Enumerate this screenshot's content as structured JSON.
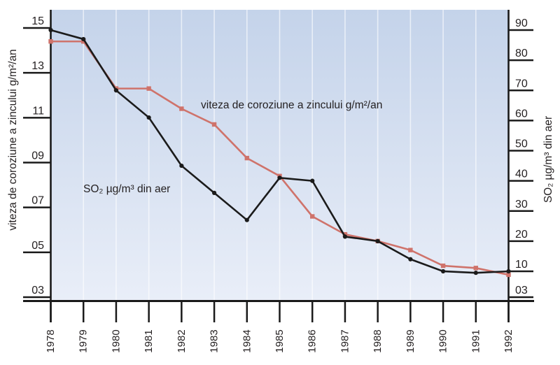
{
  "chart_data": {
    "type": "line",
    "x": [
      "1978",
      "1979",
      "1980",
      "1981",
      "1982",
      "1983",
      "1984",
      "1985",
      "1986",
      "1987",
      "1988",
      "1989",
      "1990",
      "1991",
      "1992"
    ],
    "left_axis": {
      "title": "viteza de coroziune a zincului g/m²/an",
      "ticks": [
        "15",
        "13",
        "11",
        "09",
        "07",
        "05",
        "03"
      ],
      "range": [
        3,
        15
      ]
    },
    "right_axis": {
      "title": "SO₂ µg/m³ din aer",
      "ticks": [
        "90",
        "80",
        "70",
        "60",
        "50",
        "40",
        "30",
        "20",
        "10",
        "03"
      ],
      "range": [
        10,
        90
      ]
    },
    "series": [
      {
        "name": "viteza de coroziune a zincului g/m²/an",
        "axis": "left",
        "color": "#cf736b",
        "marker": "square",
        "values": [
          14.4,
          14.4,
          12.3,
          12.3,
          11.4,
          10.7,
          9.2,
          8.4,
          6.6,
          5.8,
          5.5,
          5.1,
          4.4,
          4.3,
          4.0
        ]
      },
      {
        "name": "SO₂ µg/m³ din aer",
        "axis": "right",
        "color": "#1b1b1b",
        "marker": "circle",
        "values": [
          90,
          87,
          70,
          61,
          45,
          36,
          27,
          41,
          40,
          21.5,
          20,
          14,
          10,
          9.5,
          10
        ]
      }
    ],
    "grid": "vertical",
    "legend": "inline-labels",
    "background_gradient": [
      "#c4d3ea",
      "#e9eef8"
    ],
    "axis_color": "#1a1a1a",
    "text_color": "#231f20"
  }
}
